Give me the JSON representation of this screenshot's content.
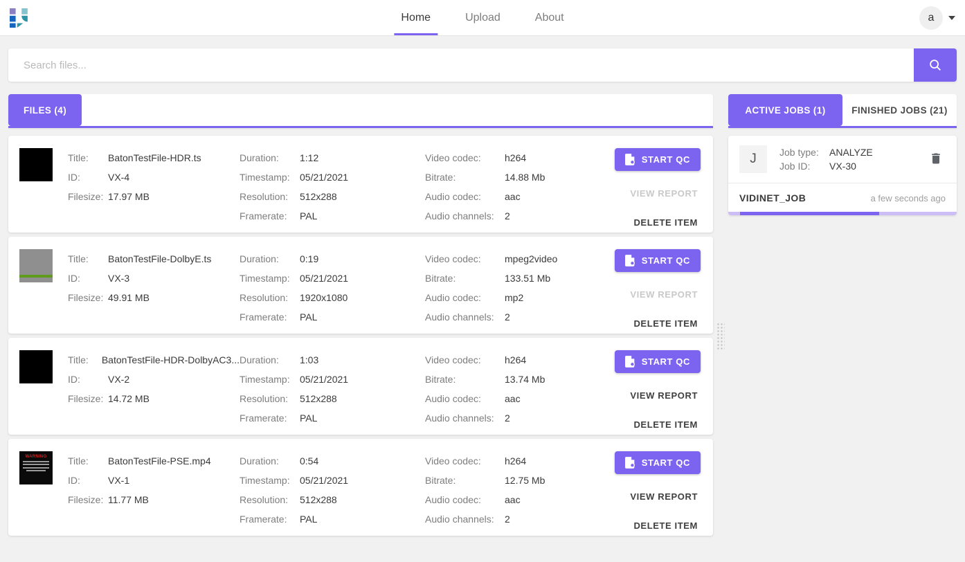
{
  "colors": {
    "accent": "#7c64f1",
    "accent_light": "#cdbdf6"
  },
  "header": {
    "nav": {
      "home": "Home",
      "upload": "Upload",
      "about": "About"
    },
    "avatar_letter": "a"
  },
  "search": {
    "placeholder": "Search files..."
  },
  "files_panel": {
    "tab_label": "FILES (4)",
    "labels": {
      "title": "Title:",
      "id": "ID:",
      "filesize": "Filesize:",
      "duration": "Duration:",
      "timestamp": "Timestamp:",
      "resolution": "Resolution:",
      "framerate": "Framerate:",
      "video_codec": "Video codec:",
      "bitrate": "Bitrate:",
      "audio_codec": "Audio codec:",
      "audio_channels": "Audio channels:"
    },
    "actions": {
      "start_qc": "START QC",
      "view_report": "VIEW REPORT",
      "delete_item": "DELETE ITEM"
    },
    "files": [
      {
        "title": "BatonTestFile-HDR.ts",
        "id": "VX-4",
        "filesize": "17.97 MB",
        "duration": "1:12",
        "timestamp": "05/21/2021",
        "resolution": "512x288",
        "framerate": "PAL",
        "video_codec": "h264",
        "bitrate": "14.88 Mb",
        "audio_codec": "aac",
        "audio_channels": "2",
        "view_report_enabled": false,
        "thumb": "black",
        "thumb_label": ""
      },
      {
        "title": "BatonTestFile-DolbyE.ts",
        "id": "VX-3",
        "filesize": "49.91 MB",
        "duration": "0:19",
        "timestamp": "05/21/2021",
        "resolution": "1920x1080",
        "framerate": "PAL",
        "video_codec": "mpeg2video",
        "bitrate": "133.51 Mb",
        "audio_codec": "mp2",
        "audio_channels": "2",
        "view_report_enabled": false,
        "thumb": "gray-line",
        "thumb_label": ""
      },
      {
        "title": "BatonTestFile-HDR-DolbyAC3...",
        "id": "VX-2",
        "filesize": "14.72 MB",
        "duration": "1:03",
        "timestamp": "05/21/2021",
        "resolution": "512x288",
        "framerate": "PAL",
        "video_codec": "h264",
        "bitrate": "13.74 Mb",
        "audio_codec": "aac",
        "audio_channels": "2",
        "view_report_enabled": true,
        "thumb": "black",
        "thumb_label": ""
      },
      {
        "title": "BatonTestFile-PSE.mp4",
        "id": "VX-1",
        "filesize": "11.77 MB",
        "duration": "0:54",
        "timestamp": "05/21/2021",
        "resolution": "512x288",
        "framerate": "PAL",
        "video_codec": "h264",
        "bitrate": "12.75 Mb",
        "audio_codec": "aac",
        "audio_channels": "2",
        "view_report_enabled": true,
        "thumb": "warning",
        "thumb_label": "WARNING"
      }
    ]
  },
  "jobs_panel": {
    "tabs": {
      "active": "ACTIVE JOBS (1)",
      "finished": "FINISHED JOBS (21)"
    },
    "job": {
      "initial": "J",
      "job_type_label": "Job type:",
      "job_type": "ANALYZE",
      "job_id_label": "Job ID:",
      "job_id": "VX-30",
      "name": "VIDINET_JOB",
      "time_ago": "a few seconds ago",
      "progress": {
        "fill_start_pct": 5,
        "fill_end_pct": 66
      }
    }
  }
}
